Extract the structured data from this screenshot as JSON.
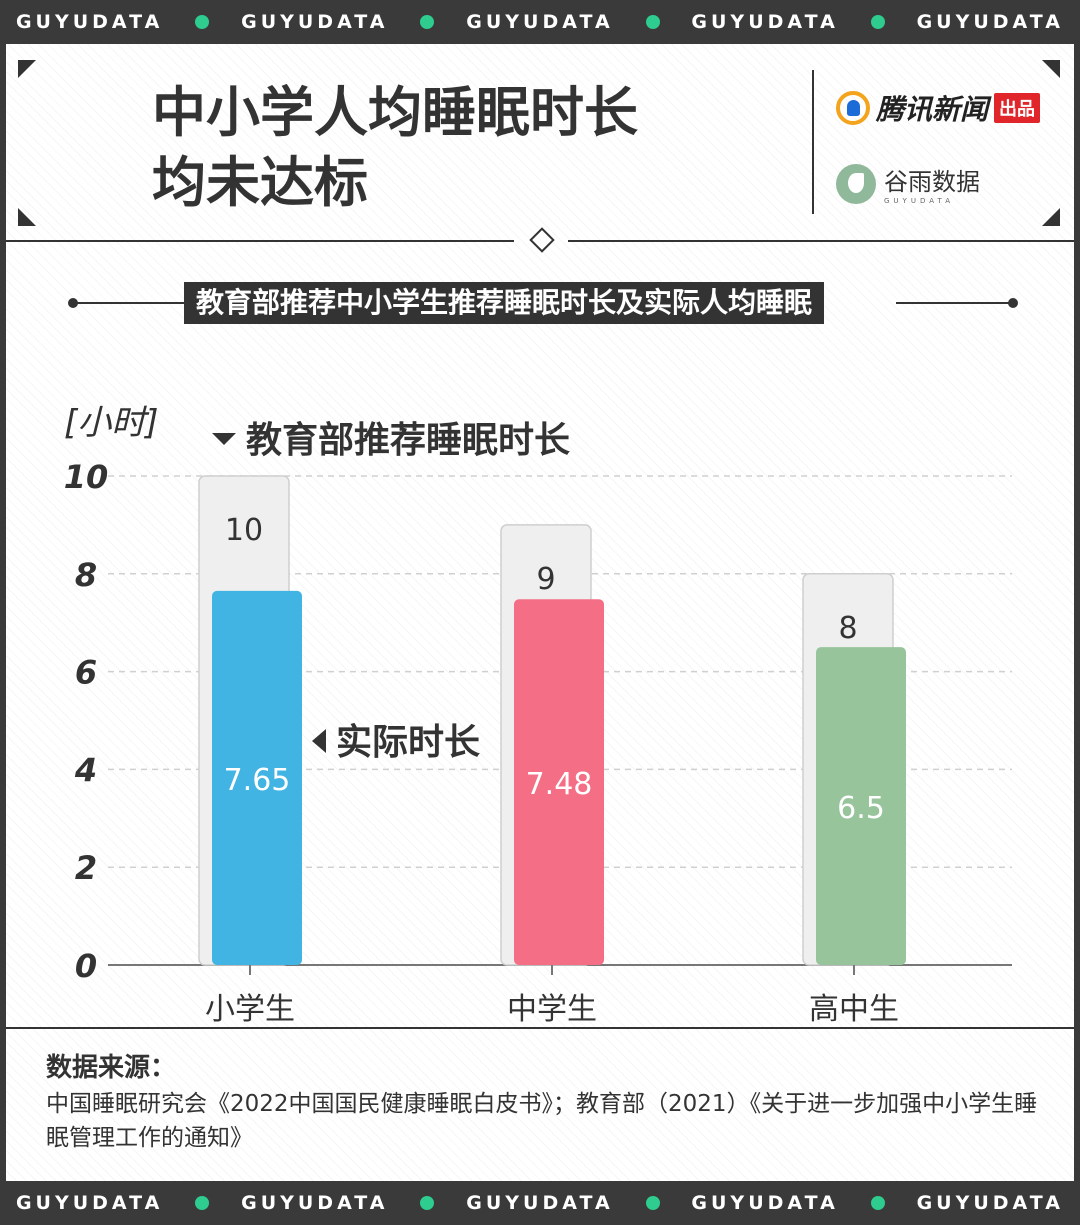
{
  "brand_band": {
    "text": "GUYUDATA",
    "dot_color": "#2ecc8f",
    "repeat": 5
  },
  "header": {
    "title_line1": "中小学人均睡眠时长",
    "title_line2": "均未达标",
    "brand1": {
      "name": "腾讯新闻",
      "tag": "出品"
    },
    "brand2": {
      "name": "谷雨数据",
      "sub": "GUYUDATA"
    }
  },
  "subtitle": "教育部推荐中小学生推荐睡眠时长及实际人均睡眠",
  "chart_data": {
    "type": "bar",
    "unit_label": "[小时]",
    "categories": [
      "小学生",
      "中学生",
      "高中生"
    ],
    "series": [
      {
        "name": "教育部推荐睡眠时长",
        "values": [
          10,
          9,
          8
        ],
        "color": "#efefef"
      },
      {
        "name": "实际时长",
        "values": [
          7.65,
          7.48,
          6.5
        ],
        "colors": [
          "#41b4e3",
          "#f46f86",
          "#98c49c"
        ]
      }
    ],
    "yticks": [
      10,
      8,
      6,
      4,
      2,
      0
    ],
    "ylim": [
      0,
      10
    ],
    "grid": true
  },
  "source": {
    "title": "数据来源：",
    "text": "中国睡眠研究会《2022中国国民健康睡眠白皮书》；教育部（2021）《关于进一步加强中小学生睡眠管理工作的通知》"
  }
}
